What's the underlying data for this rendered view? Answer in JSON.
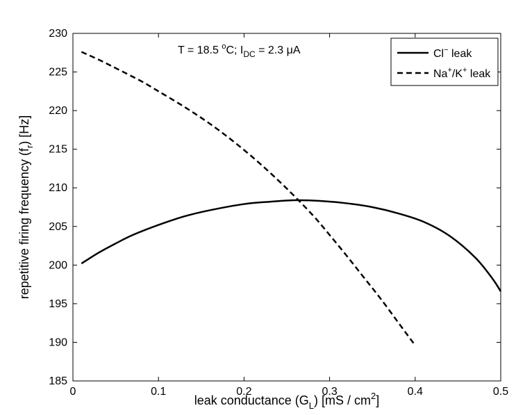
{
  "chart_data": {
    "type": "line",
    "title": "",
    "annotation": {
      "text_t": "T = 18.5 ",
      "text_o": "o",
      "text_c": "C; I",
      "text_dc": "DC",
      "text_rest": " = 2.3 μA"
    },
    "xlabel": {
      "part1": "leak conductance (G",
      "sub": "L",
      "part2": ") [mS / cm",
      "sup": "2",
      "part3": "]"
    },
    "ylabel": {
      "part1": "repetitive firing frequency (f",
      "sub": "r",
      "part2": ") [Hz]"
    },
    "xlim": [
      0,
      0.5
    ],
    "ylim": [
      185,
      230
    ],
    "x_ticks": [
      0,
      0.1,
      0.2,
      0.3,
      0.4,
      0.5
    ],
    "x_tick_labels": [
      "0",
      "0.1",
      "0.2",
      "0.3",
      "0.4",
      "0.5"
    ],
    "y_ticks": [
      185,
      190,
      195,
      200,
      205,
      210,
      215,
      220,
      225,
      230
    ],
    "y_tick_labels": [
      "185",
      "190",
      "195",
      "200",
      "205",
      "210",
      "215",
      "220",
      "225",
      "230"
    ],
    "grid": false,
    "legend_position": "top-right",
    "series": [
      {
        "name": "Cl",
        "name_sup": "−",
        "name_suffix": " leak",
        "line_style": "solid",
        "color": "#000000",
        "x": [
          0.01,
          0.03,
          0.05,
          0.07,
          0.1,
          0.13,
          0.16,
          0.2,
          0.23,
          0.26,
          0.29,
          0.32,
          0.35,
          0.38,
          0.41,
          0.44,
          0.47,
          0.49,
          0.5
        ],
        "y": [
          200.2,
          201.6,
          202.8,
          203.9,
          205.2,
          206.3,
          207.1,
          207.9,
          208.2,
          208.4,
          208.3,
          208.0,
          207.5,
          206.7,
          205.6,
          203.8,
          201.0,
          198.3,
          196.6
        ]
      },
      {
        "name": "Na",
        "name_sup": "+",
        "name_mid": "/K",
        "name_sup2": "+",
        "name_suffix": " leak",
        "line_style": "dashed",
        "color": "#000000",
        "x": [
          0.01,
          0.03,
          0.05,
          0.08,
          0.1,
          0.13,
          0.16,
          0.19,
          0.22,
          0.25,
          0.28,
          0.3,
          0.32,
          0.34,
          0.36,
          0.38,
          0.39,
          0.4
        ],
        "y": [
          227.6,
          226.6,
          225.5,
          223.8,
          222.5,
          220.5,
          218.3,
          215.8,
          213.0,
          209.9,
          206.5,
          203.9,
          201.2,
          198.4,
          195.6,
          192.6,
          191.1,
          189.6
        ]
      }
    ]
  }
}
